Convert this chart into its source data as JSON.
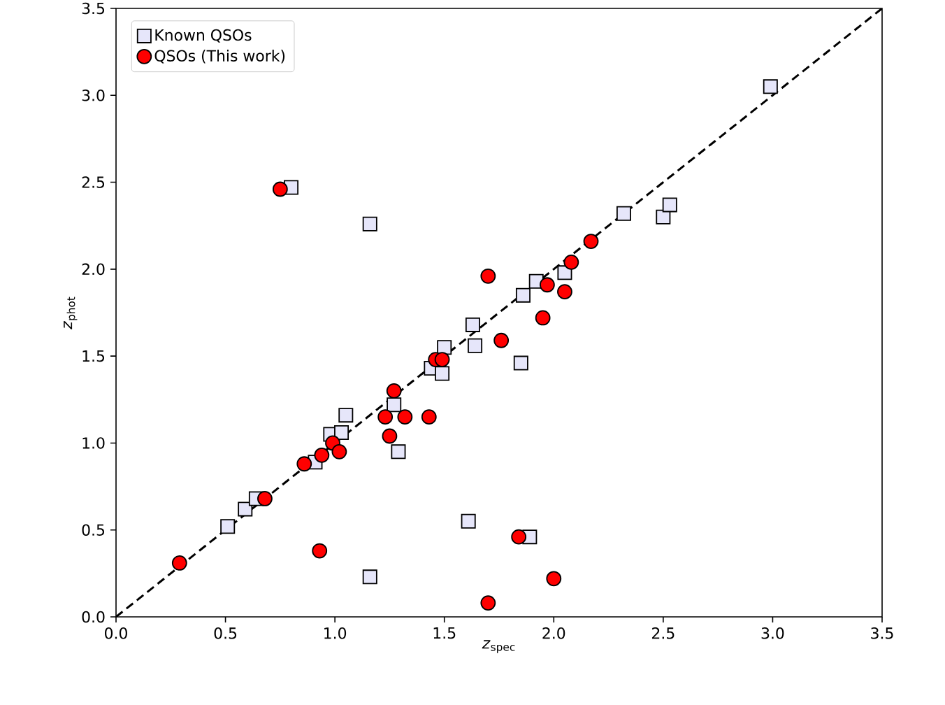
{
  "chart_data": {
    "type": "scatter",
    "xlabel": "*z*$_{spec}$",
    "ylabel": "*z*$_{phot}$",
    "xlim": [
      0,
      3.5
    ],
    "ylim": [
      0,
      3.5
    ],
    "xticks": [
      {
        "value": 0,
        "label": "0.0"
      },
      {
        "value": 0.5,
        "label": "0.5"
      },
      {
        "value": 1,
        "label": "1.0"
      },
      {
        "value": 1.5,
        "label": "1.5"
      },
      {
        "value": 2,
        "label": "2.0"
      },
      {
        "value": 2.5,
        "label": "2.5"
      },
      {
        "value": 3,
        "label": "3.0"
      },
      {
        "value": 3.5,
        "label": "3.5"
      }
    ],
    "yticks": [
      {
        "value": 0,
        "label": "0.0"
      },
      {
        "value": 0.5,
        "label": "0.5"
      },
      {
        "value": 1,
        "label": "1.0"
      },
      {
        "value": 1.5,
        "label": "1.5"
      },
      {
        "value": 2,
        "label": "2.0"
      },
      {
        "value": 2.5,
        "label": "2.5"
      },
      {
        "value": 3,
        "label": "3.0"
      },
      {
        "value": 3.5,
        "label": "3.5"
      }
    ],
    "legend": "top left",
    "grid": false,
    "series": [
      {
        "type": "line",
        "line_style": "dashed",
        "marker": "none",
        "color": "#000000",
        "x": [
          0,
          3.5
        ],
        "values": [
          0,
          3.5
        ]
      },
      {
        "name": "Known QSOs",
        "marker": "square",
        "color": "#e6e6fa",
        "x": [
          0.8,
          1.16,
          0.51,
          0.59,
          0.64,
          0.91,
          0.98,
          1.03,
          1.05,
          1.27,
          1.29,
          1.16,
          1.44,
          1.5,
          1.49,
          1.63,
          1.64,
          1.61,
          1.85,
          1.89,
          1.86,
          1.92,
          2.05,
          2.32,
          2.5,
          2.53,
          2.99
        ],
        "values": [
          2.47,
          2.26,
          0.52,
          0.62,
          0.68,
          0.89,
          1.05,
          1.06,
          1.16,
          1.22,
          0.95,
          0.23,
          1.43,
          1.55,
          1.4,
          1.68,
          1.56,
          0.55,
          1.46,
          0.46,
          1.85,
          1.93,
          1.98,
          2.32,
          2.3,
          2.37,
          3.05
        ]
      },
      {
        "name": "QSOs (This work)",
        "marker": "circle",
        "color": "#ff0000",
        "x": [
          0.75,
          0.29,
          0.68,
          0.86,
          0.93,
          0.94,
          0.99,
          1.02,
          1.23,
          1.25,
          1.27,
          1.32,
          1.43,
          1.46,
          1.49,
          1.7,
          1.76,
          1.7,
          1.84,
          2.0,
          1.95,
          1.97,
          2.05,
          2.08,
          2.17
        ],
        "values": [
          2.46,
          0.31,
          0.68,
          0.88,
          0.38,
          0.93,
          1.0,
          0.95,
          1.15,
          1.04,
          1.3,
          1.15,
          1.15,
          1.48,
          1.48,
          1.96,
          1.59,
          0.08,
          0.46,
          0.22,
          1.72,
          1.91,
          1.87,
          2.04,
          2.16
        ]
      }
    ]
  }
}
